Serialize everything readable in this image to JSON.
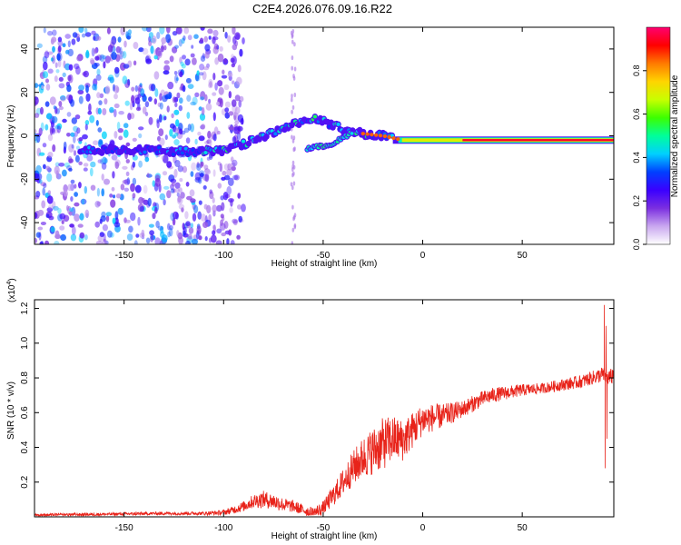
{
  "figure": {
    "title": "C2E4.2026.076.09.16.R22"
  },
  "chart_data": [
    {
      "type": "heatmap",
      "title": "C2E4.2026.076.09.16.R22",
      "xlabel": "Height of straight line (km)",
      "ylabel": "Frequency (Hz)",
      "xlim": [
        -195,
        96
      ],
      "ylim": [
        -50,
        50
      ],
      "x_ticks": [
        -150,
        -100,
        -50,
        0,
        50
      ],
      "y_ticks": [
        -40,
        -20,
        0,
        20,
        40
      ],
      "colorbar": {
        "label": "Normalized spectral amplitude",
        "range": [
          0.0,
          1.0
        ],
        "ticks": [
          0.0,
          0.2,
          0.4,
          0.6,
          0.8
        ],
        "colors": [
          "#ffffff",
          "#c9a7ef",
          "#7b2fe0",
          "#3a00ff",
          "#0040ff",
          "#00d0ff",
          "#00ff9a",
          "#3cff00",
          "#c8ff00",
          "#ffd400",
          "#ff7a00",
          "#ff0000",
          "#ff0070"
        ]
      },
      "ridge": {
        "x": [
          -170,
          -150,
          -130,
          -110,
          -100,
          -90,
          -80,
          -70,
          -65,
          -55,
          -45,
          -40,
          -30,
          -20,
          -10,
          0,
          20,
          50,
          94
        ],
        "y": [
          -7,
          -6,
          -7,
          -7,
          -7,
          -4,
          0,
          3,
          5,
          8,
          5,
          3,
          1,
          0,
          -2,
          -2,
          -2,
          -2,
          -2
        ]
      },
      "secondary_ridge": {
        "x": [
          -58,
          -52,
          -46,
          -40,
          -35
        ],
        "y": [
          -6,
          -5,
          -4,
          -1,
          2
        ]
      },
      "stable_band": {
        "x_start": -15,
        "x_end": 96,
        "y": -2,
        "amplitude": 0.95
      },
      "noise_region": {
        "x_start": -195,
        "x_end": -100,
        "amplitude_max": 0.35
      }
    },
    {
      "type": "line",
      "title": "",
      "xlabel": "Height of straight line (km)",
      "ylabel": "SNR (10 * v/v)",
      "y_multiplier": "(x10",
      "y_multiplier_exponent": "4",
      "xlim": [
        -195,
        96
      ],
      "ylim": [
        0,
        1.25
      ],
      "x_ticks": [
        -150,
        -100,
        -50,
        0,
        50
      ],
      "y_ticks": [
        0.2,
        0.4,
        0.6,
        0.8,
        1.0,
        1.2
      ],
      "series": [
        {
          "color": "#e8231a",
          "trend": {
            "x": [
              -195,
              -160,
              -130,
              -110,
              -100,
              -95,
              -90,
              -85,
              -80,
              -75,
              -70,
              -65,
              -60,
              -55,
              -50,
              -45,
              -40,
              -35,
              -30,
              -25,
              -20,
              -15,
              -10,
              -5,
              0,
              5,
              10,
              15,
              20,
              25,
              30,
              35,
              40,
              50,
              60,
              70,
              80,
              85,
              88,
              90,
              92,
              94,
              96
            ],
            "y": [
              0.01,
              0.015,
              0.02,
              0.02,
              0.025,
              0.04,
              0.06,
              0.09,
              0.1,
              0.09,
              0.07,
              0.06,
              0.04,
              0.02,
              0.05,
              0.12,
              0.2,
              0.28,
              0.34,
              0.38,
              0.42,
              0.45,
              0.44,
              0.5,
              0.56,
              0.57,
              0.58,
              0.6,
              0.62,
              0.65,
              0.68,
              0.7,
              0.71,
              0.73,
              0.74,
              0.76,
              0.78,
              0.8,
              0.81,
              0.82,
              0.81,
              0.8,
              0.82
            ]
          },
          "noise": {
            "x": [
              -195,
              -110,
              -100,
              -90,
              -80,
              -70,
              -60,
              -50,
              -40,
              -30,
              -20,
              -10,
              0,
              10,
              20,
              40,
              60,
              85,
              96
            ],
            "y": [
              0.008,
              0.01,
              0.015,
              0.03,
              0.05,
              0.04,
              0.03,
              0.04,
              0.08,
              0.12,
              0.15,
              0.12,
              0.09,
              0.07,
              0.05,
              0.04,
              0.03,
              0.04,
              0.05
            ]
          },
          "spikes": [
            {
              "x": 91.2,
              "y": 1.22
            },
            {
              "x": 91.6,
              "y": 0.28
            },
            {
              "x": 92.1,
              "y": 1.1
            },
            {
              "x": 92.6,
              "y": 0.45
            }
          ]
        }
      ]
    }
  ]
}
